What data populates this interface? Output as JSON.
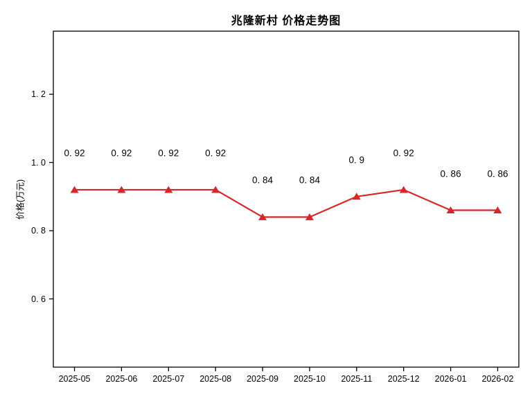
{
  "chart": {
    "title": "兆隆新村 价格走势图",
    "ylabel": "价格(万元)"
  },
  "chart_data": {
    "type": "line",
    "title": "兆隆新村 价格走势图",
    "xlabel": "",
    "ylabel": "价格(万元)",
    "categories": [
      "2025-05",
      "2025-06",
      "2025-07",
      "2025-08",
      "2025-09",
      "2025-10",
      "2025-11",
      "2025-12",
      "2026-01",
      "2026-02"
    ],
    "values": [
      0.92,
      0.92,
      0.92,
      0.92,
      0.84,
      0.84,
      0.9,
      0.92,
      0.86,
      0.86
    ],
    "point_labels": [
      "0. 92",
      "0. 92",
      "0. 92",
      "0. 92",
      "0. 84",
      "0. 84",
      "0. 9",
      "0. 92",
      "0. 86",
      "0. 86"
    ],
    "yticks": [
      1.2,
      1.0,
      0.8,
      0.6
    ],
    "ytick_labels": [
      "1. 2",
      "1. 0",
      "0. 8",
      "0. 6"
    ],
    "ylim": [
      0.4,
      1.385
    ],
    "xlim": [
      -0.45,
      9.45
    ],
    "grid": false,
    "legend": "none",
    "line_color": "#d62728",
    "marker": "triangle-up",
    "marker_color": "#d62728",
    "axis_color": "#000000",
    "background_color": "#ffffff"
  }
}
